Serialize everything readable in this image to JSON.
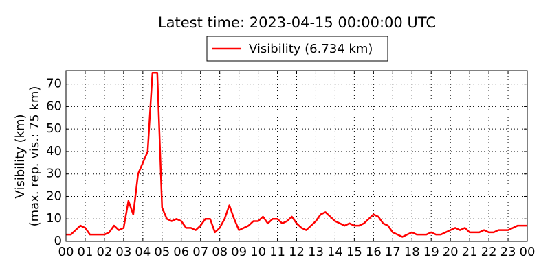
{
  "chart_data": {
    "type": "line",
    "title": "Latest time: 2023-04-15 00:00:00 UTC",
    "ylabel": [
      "Visibility (km)",
      "(max. rep. vis.: 75 km)"
    ],
    "x": [
      0,
      0.25,
      0.5,
      0.75,
      1,
      1.25,
      1.5,
      1.75,
      2,
      2.25,
      2.5,
      2.75,
      3,
      3.25,
      3.5,
      3.75,
      4,
      4.25,
      4.5,
      4.75,
      5,
      5.25,
      5.5,
      5.75,
      6,
      6.25,
      6.5,
      6.75,
      7,
      7.25,
      7.5,
      7.75,
      8,
      8.25,
      8.5,
      8.75,
      9,
      9.25,
      9.5,
      9.75,
      10,
      10.25,
      10.5,
      10.75,
      11,
      11.25,
      11.5,
      11.75,
      12,
      12.25,
      12.5,
      12.75,
      13,
      13.25,
      13.5,
      13.75,
      14,
      14.25,
      14.5,
      14.75,
      15,
      15.25,
      15.5,
      15.75,
      16,
      16.25,
      16.5,
      16.75,
      17,
      17.25,
      17.5,
      17.75,
      18,
      18.25,
      18.5,
      18.75,
      19,
      19.25,
      19.5,
      19.75,
      20,
      20.25,
      20.5,
      20.75,
      21,
      21.25,
      21.5,
      21.75,
      22,
      22.25,
      22.5,
      22.75,
      23,
      23.25,
      23.5,
      23.75,
      24
    ],
    "series": [
      {
        "name": "Visibility (6.734 km)",
        "color": "#ff0000",
        "values": [
          3,
          3,
          5,
          7,
          6,
          3,
          3,
          3,
          3,
          4,
          7,
          5,
          6,
          18,
          12,
          30,
          35,
          40,
          75,
          75,
          15,
          10,
          9,
          10,
          9,
          6,
          6,
          5,
          7,
          10,
          10,
          4,
          6,
          10,
          16,
          10,
          5,
          6,
          7,
          9,
          9,
          11,
          8,
          10,
          10,
          8,
          9,
          11,
          8,
          6,
          5,
          7,
          9,
          12,
          13,
          11,
          9,
          8,
          7,
          8,
          7,
          7,
          8,
          10,
          12,
          11,
          8,
          7,
          4,
          3,
          2,
          3,
          4,
          3,
          3,
          3,
          4,
          3,
          3,
          4,
          5,
          6,
          5,
          6,
          4,
          4,
          4,
          5,
          4,
          4,
          5,
          5,
          5,
          6,
          7,
          7,
          7
        ]
      }
    ],
    "xlim": [
      0,
      24
    ],
    "ylim": [
      0,
      76
    ],
    "xticks": [
      {
        "value": 0,
        "label": "00"
      },
      {
        "value": 1,
        "label": "01"
      },
      {
        "value": 2,
        "label": "02"
      },
      {
        "value": 3,
        "label": "03"
      },
      {
        "value": 4,
        "label": "04"
      },
      {
        "value": 5,
        "label": "05"
      },
      {
        "value": 6,
        "label": "06"
      },
      {
        "value": 7,
        "label": "07"
      },
      {
        "value": 8,
        "label": "08"
      },
      {
        "value": 9,
        "label": "09"
      },
      {
        "value": 10,
        "label": "10"
      },
      {
        "value": 11,
        "label": "11"
      },
      {
        "value": 12,
        "label": "12"
      },
      {
        "value": 13,
        "label": "13"
      },
      {
        "value": 14,
        "label": "14"
      },
      {
        "value": 15,
        "label": "15"
      },
      {
        "value": 16,
        "label": "16"
      },
      {
        "value": 17,
        "label": "17"
      },
      {
        "value": 18,
        "label": "18"
      },
      {
        "value": 19,
        "label": "19"
      },
      {
        "value": 20,
        "label": "20"
      },
      {
        "value": 21,
        "label": "21"
      },
      {
        "value": 22,
        "label": "22"
      },
      {
        "value": 23,
        "label": "23"
      },
      {
        "value": 24,
        "label": "00"
      }
    ],
    "yticks": [
      0,
      10,
      20,
      30,
      40,
      50,
      60,
      70
    ],
    "grid": true,
    "legend": "top"
  }
}
